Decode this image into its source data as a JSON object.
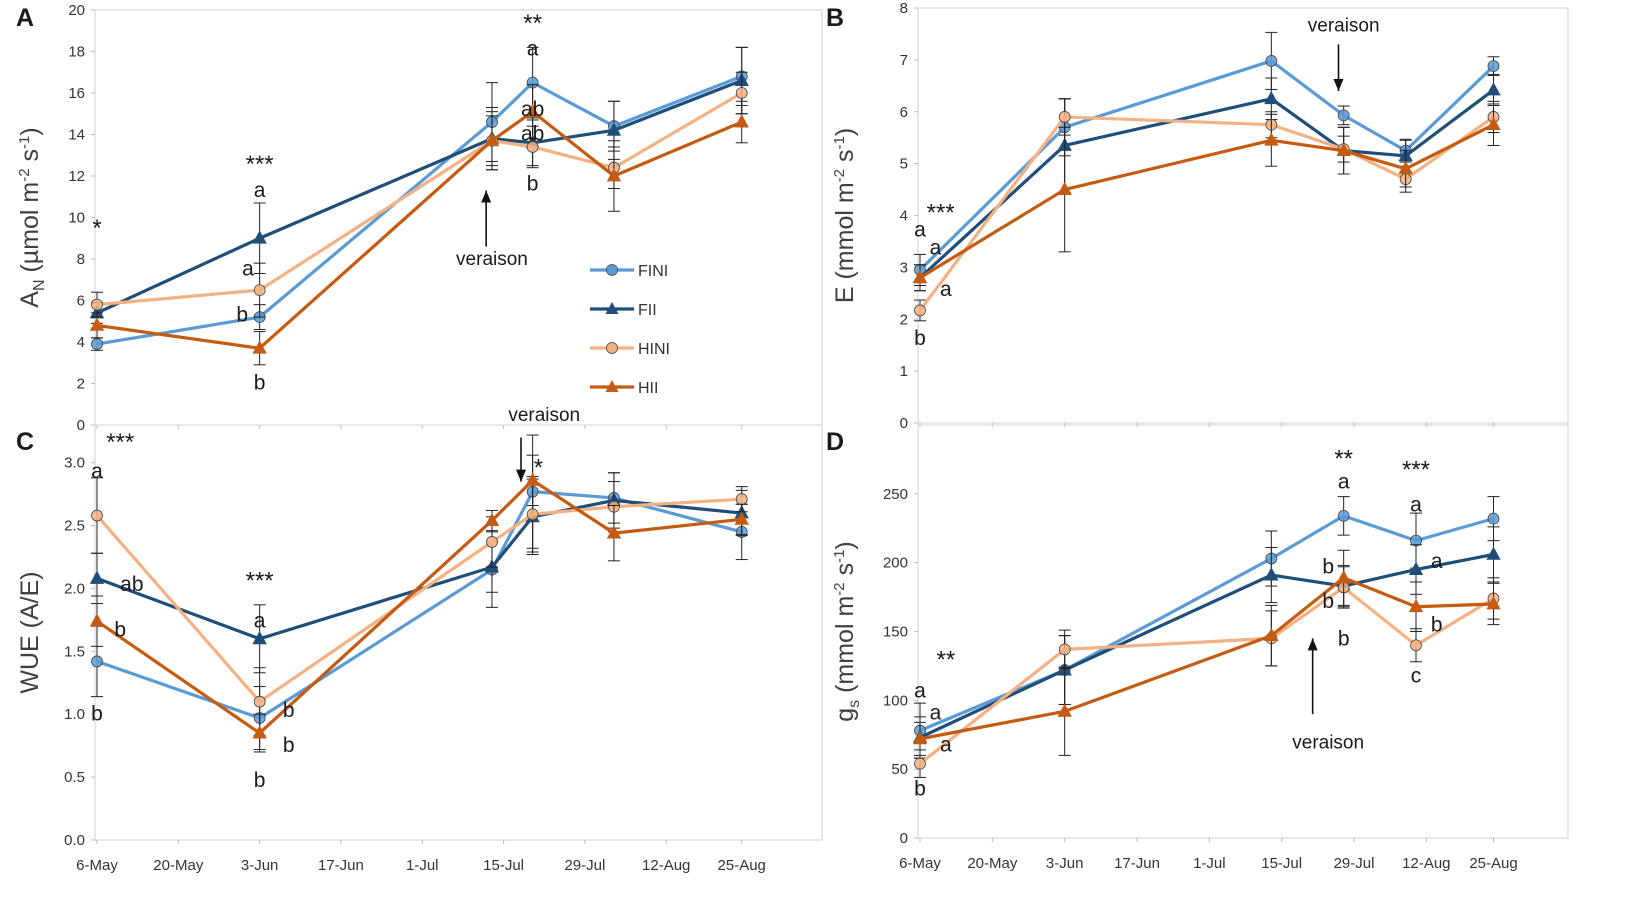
{
  "figure": {
    "legend": [
      {
        "label": "FINI",
        "color": "#5b9bd5",
        "marker": "circle"
      },
      {
        "label": "FII",
        "color": "#1f4e79",
        "marker": "triangle"
      },
      {
        "label": "HINI",
        "color": "#f4b183",
        "marker": "circle"
      },
      {
        "label": "HII",
        "color": "#c55a11",
        "marker": "triangle"
      }
    ],
    "x_tick_labels": [
      "6-May",
      "20-May",
      "3-Jun",
      "17-Jun",
      "1-Jul",
      "15-Jul",
      "29-Jul",
      "12-Aug",
      "25-Aug"
    ]
  },
  "chart_data": [
    {
      "panel": "A",
      "type": "line",
      "ylabel": "AN (µmol m-2 s-1)",
      "ylabel_parts": {
        "main": "A",
        "sub": "N",
        "unit_open": " (µmol m",
        "exp1": "-2",
        "mid": " s",
        "exp2": "-1",
        "unit_close": ")"
      },
      "ylim": [
        0,
        20
      ],
      "yticks": [
        0,
        2,
        4,
        6,
        8,
        10,
        12,
        14,
        16,
        18,
        20
      ],
      "x": [
        0,
        28,
        68,
        75,
        89,
        111
      ],
      "series": [
        {
          "name": "FINI",
          "values": [
            3.9,
            5.2,
            14.6,
            16.5,
            14.4,
            16.8
          ],
          "errors": [
            0.3,
            0.6,
            1.9,
            1.7,
            1.2,
            1.4
          ]
        },
        {
          "name": "FII",
          "values": [
            5.4,
            9.0,
            13.8,
            13.6,
            14.2,
            16.6
          ],
          "errors": [
            0.5,
            1.7,
            1.5,
            1.1,
            1.4,
            1.6
          ]
        },
        {
          "name": "HINI",
          "values": [
            5.8,
            6.5,
            13.7,
            13.4,
            12.4,
            16.0
          ],
          "errors": [
            0.6,
            1.3,
            1.2,
            1.0,
            1.0,
            1.0
          ]
        },
        {
          "name": "HII",
          "values": [
            4.8,
            3.7,
            13.7,
            15.1,
            12.0,
            14.6
          ],
          "errors": [
            0.6,
            0.8,
            1.4,
            1.3,
            1.7,
            1.0
          ]
        }
      ],
      "annotations": [
        {
          "text": "*",
          "kind": "sig",
          "x": 0,
          "y": 9.1
        },
        {
          "text": "***",
          "kind": "sig",
          "x": 28,
          "y": 12.2
        },
        {
          "text": "a",
          "kind": "letter",
          "x": 28,
          "y": 11.0
        },
        {
          "text": "a",
          "kind": "letter",
          "x": 26,
          "y": 7.2
        },
        {
          "text": "b",
          "kind": "letter",
          "x": 25,
          "y": 5.0
        },
        {
          "text": "b",
          "kind": "letter",
          "x": 28,
          "y": 1.7
        },
        {
          "text": "**",
          "kind": "sig",
          "x": 75,
          "y": 19.0
        },
        {
          "text": "a",
          "kind": "letter",
          "x": 75,
          "y": 17.8
        },
        {
          "text": "ab",
          "kind": "letter",
          "x": 75,
          "y": 14.9
        },
        {
          "text": "ab",
          "kind": "letter",
          "x": 75,
          "y": 13.7
        },
        {
          "text": "b",
          "kind": "letter",
          "x": 75,
          "y": 11.3
        },
        {
          "text": "veraison",
          "kind": "note",
          "x": 68,
          "y": 7.7
        }
      ],
      "veraison_arrow": {
        "x": 67,
        "from_y": 8.6,
        "to_y": 11.3
      },
      "legend_position": "center-right"
    },
    {
      "panel": "B",
      "type": "line",
      "ylabel": "E (mmol m-2 s-1)",
      "ylabel_parts": {
        "main": "E",
        "sub": "",
        "unit_open": " (mmol m",
        "exp1": "-2",
        "mid": " s",
        "exp2": "-1",
        "unit_close": ")"
      },
      "ylim": [
        0,
        8
      ],
      "yticks": [
        0,
        1,
        2,
        3,
        4,
        5,
        6,
        7,
        8
      ],
      "x": [
        0,
        28,
        68,
        82,
        94,
        111
      ],
      "series": [
        {
          "name": "FINI",
          "values": [
            2.95,
            5.7,
            6.98,
            5.93,
            5.25,
            6.88
          ],
          "errors": [
            0.3,
            0.55,
            0.55,
            0.18,
            0.22,
            0.18
          ]
        },
        {
          "name": "FII",
          "values": [
            2.8,
            5.35,
            6.25,
            5.25,
            5.15,
            6.42
          ],
          "errors": [
            0.25,
            0.9,
            0.4,
            0.45,
            0.3,
            0.3
          ]
        },
        {
          "name": "HINI",
          "values": [
            2.17,
            5.9,
            5.75,
            5.28,
            4.7,
            5.9
          ],
          "errors": [
            0.2,
            0.35,
            0.25,
            0.25,
            0.25,
            0.3
          ]
        },
        {
          "name": "HII",
          "values": [
            2.8,
            4.5,
            5.45,
            5.25,
            4.9,
            5.75
          ],
          "errors": [
            0.25,
            1.2,
            0.5,
            0.45,
            0.35,
            0.4
          ]
        }
      ],
      "annotations": [
        {
          "text": "***",
          "kind": "sig",
          "x": 4,
          "y": 3.9
        },
        {
          "text": "a",
          "kind": "letter",
          "x": 0,
          "y": 3.6
        },
        {
          "text": "a",
          "kind": "letter",
          "x": 3,
          "y": 3.25
        },
        {
          "text": "a",
          "kind": "letter",
          "x": 5,
          "y": 2.45
        },
        {
          "text": "b",
          "kind": "letter",
          "x": 0,
          "y": 1.5
        },
        {
          "text": "veraison",
          "kind": "note",
          "x": 82,
          "y": 7.55
        }
      ],
      "veraison_arrow": {
        "x": 81,
        "from_y": 7.3,
        "to_y": 6.4
      }
    },
    {
      "panel": "C",
      "type": "line",
      "ylabel": "WUE (A/E)",
      "ylabel_parts": {
        "main": "WUE (A/E)",
        "sub": "",
        "unit_open": "",
        "exp1": "",
        "mid": "",
        "exp2": "",
        "unit_close": ""
      },
      "ylim": [
        0,
        3.3
      ],
      "yticks": [
        0.0,
        0.5,
        1.0,
        1.5,
        2.0,
        2.5,
        3.0
      ],
      "ytick_labels": [
        "0.0",
        "0.5",
        "1.0",
        "1.5",
        "2.0",
        "2.5",
        "3.0"
      ],
      "x": [
        0,
        28,
        68,
        75,
        89,
        111
      ],
      "series": [
        {
          "name": "FINI",
          "values": [
            1.42,
            0.97,
            2.15,
            2.77,
            2.72,
            2.45
          ],
          "errors": [
            0.28,
            0.25,
            0.3,
            0.45,
            0.2,
            0.22
          ]
        },
        {
          "name": "FII",
          "values": [
            2.08,
            1.6,
            2.17,
            2.57,
            2.7,
            2.6
          ],
          "errors": [
            0.2,
            0.27,
            0.2,
            0.3,
            0.22,
            0.18
          ]
        },
        {
          "name": "HINI",
          "values": [
            2.58,
            1.1,
            2.37,
            2.59,
            2.65,
            2.71
          ],
          "errors": [
            0.3,
            0.27,
            0.2,
            0.3,
            0.2,
            0.1
          ]
        },
        {
          "name": "HII",
          "values": [
            1.74,
            0.85,
            2.54,
            2.86,
            2.44,
            2.55
          ],
          "errors": [
            0.2,
            0.15,
            0.08,
            0.2,
            0.22,
            0.12
          ]
        }
      ],
      "annotations": [
        {
          "text": "***",
          "kind": "sig",
          "x": 4,
          "y": 3.1
        },
        {
          "text": "a",
          "kind": "letter",
          "x": 0,
          "y": 2.88
        },
        {
          "text": "ab",
          "kind": "letter",
          "x": 6,
          "y": 1.98
        },
        {
          "text": "b",
          "kind": "letter",
          "x": 4,
          "y": 1.62
        },
        {
          "text": "b",
          "kind": "letter",
          "x": 0,
          "y": 0.95
        },
        {
          "text": "***",
          "kind": "sig",
          "x": 28,
          "y": 2.0
        },
        {
          "text": "a",
          "kind": "letter",
          "x": 28,
          "y": 1.69
        },
        {
          "text": "b",
          "kind": "letter",
          "x": 33,
          "y": 0.98
        },
        {
          "text": "b",
          "kind": "letter",
          "x": 33,
          "y": 0.7
        },
        {
          "text": "b",
          "kind": "letter",
          "x": 28,
          "y": 0.42
        },
        {
          "text": "veraison",
          "kind": "note",
          "x": 77,
          "y": 3.33
        },
        {
          "text": "*",
          "kind": "sig",
          "x": 76,
          "y": 2.9
        }
      ],
      "veraison_arrow": {
        "x": 73,
        "from_y": 3.2,
        "to_y": 2.85
      }
    },
    {
      "panel": "D",
      "type": "line",
      "ylabel": "gs (mmol m-2 s-1)",
      "ylabel_parts": {
        "main": "g",
        "sub": "s",
        "unit_open": " (mmol m",
        "exp1": "-2",
        "mid": " s",
        "exp2": "-1",
        "unit_close": ")"
      },
      "ylim": [
        0,
        300
      ],
      "yticks": [
        0,
        50,
        100,
        150,
        200,
        250
      ],
      "x": [
        0,
        28,
        68,
        82,
        96,
        111
      ],
      "series": [
        {
          "name": "FINI",
          "values": [
            78,
            122,
            203,
            234,
            216,
            232
          ],
          "errors": [
            20,
            25,
            20,
            14,
            20,
            16
          ]
        },
        {
          "name": "FII",
          "values": [
            73,
            122,
            191,
            183,
            195,
            206
          ],
          "errors": [
            15,
            25,
            20,
            15,
            18,
            20
          ]
        },
        {
          "name": "HINI",
          "values": [
            54,
            137,
            145,
            182,
            140,
            174
          ],
          "errors": [
            10,
            14,
            20,
            15,
            12,
            15
          ]
        },
        {
          "name": "HII",
          "values": [
            72,
            92,
            147,
            189,
            168,
            170
          ],
          "errors": [
            12,
            32,
            22,
            20,
            18,
            15
          ]
        }
      ],
      "annotations": [
        {
          "text": "**",
          "kind": "sig",
          "x": 5,
          "y": 124
        },
        {
          "text": "a",
          "kind": "letter",
          "x": 0,
          "y": 102
        },
        {
          "text": "a",
          "kind": "letter",
          "x": 3,
          "y": 86
        },
        {
          "text": "a",
          "kind": "letter",
          "x": 5,
          "y": 63
        },
        {
          "text": "b",
          "kind": "letter",
          "x": 0,
          "y": 31
        },
        {
          "text": "**",
          "kind": "sig",
          "x": 82,
          "y": 270
        },
        {
          "text": "a",
          "kind": "letter",
          "x": 82,
          "y": 254
        },
        {
          "text": "b",
          "kind": "letter",
          "x": 79,
          "y": 192
        },
        {
          "text": "b",
          "kind": "letter",
          "x": 79,
          "y": 167
        },
        {
          "text": "b",
          "kind": "letter",
          "x": 82,
          "y": 140
        },
        {
          "text": "***",
          "kind": "sig",
          "x": 96,
          "y": 262
        },
        {
          "text": "a",
          "kind": "letter",
          "x": 96,
          "y": 237
        },
        {
          "text": "a",
          "kind": "letter",
          "x": 100,
          "y": 196
        },
        {
          "text": "b",
          "kind": "letter",
          "x": 100,
          "y": 150
        },
        {
          "text": "c",
          "kind": "letter",
          "x": 96,
          "y": 113
        },
        {
          "text": "veraison",
          "kind": "note",
          "x": 79,
          "y": 65
        }
      ],
      "veraison_arrow": {
        "x": 76,
        "from_y": 90,
        "to_y": 145
      }
    }
  ]
}
